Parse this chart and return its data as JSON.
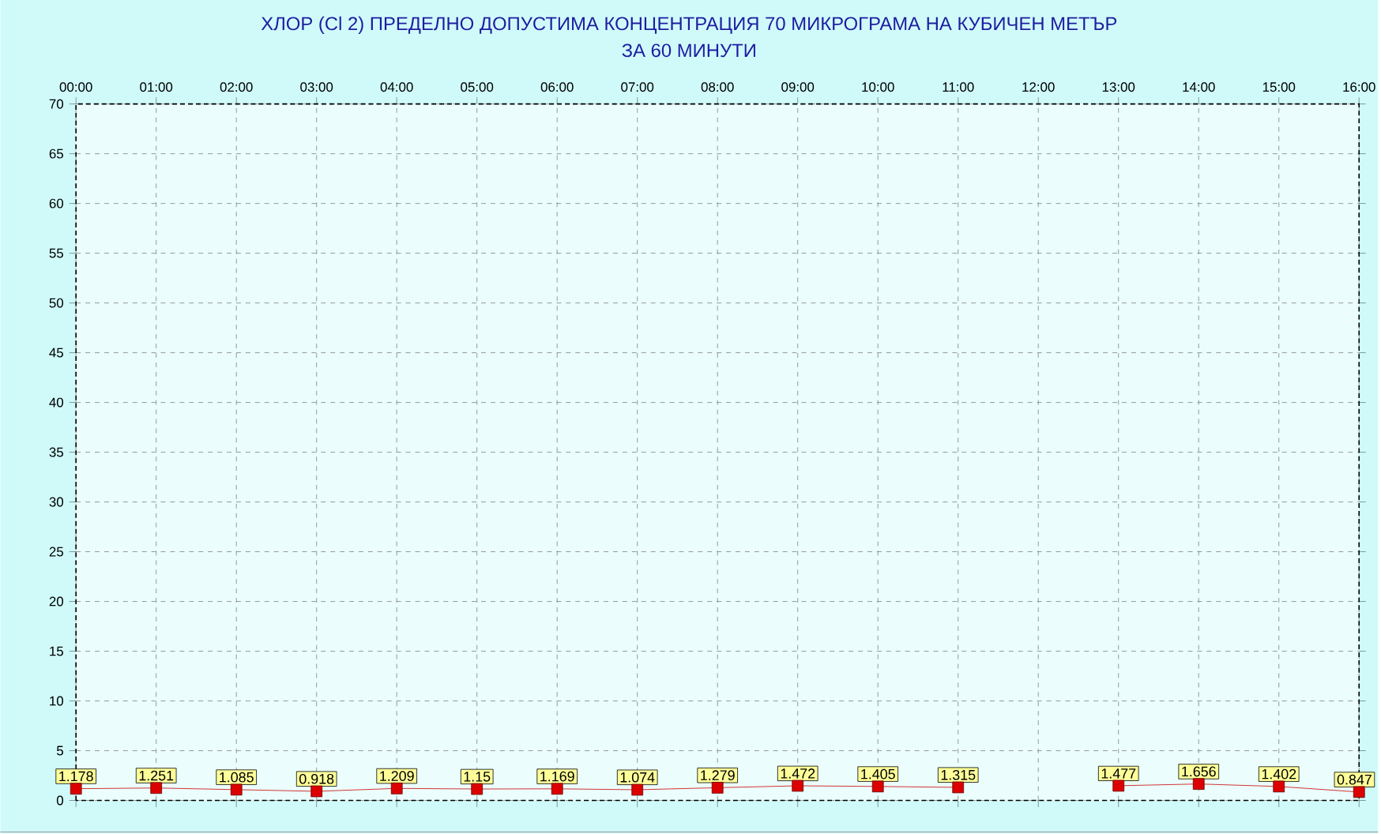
{
  "chart_data": {
    "type": "line",
    "title": "ХЛОР  (Cl 2)    ПРЕДЕЛНО ДОПУСТИМА КОНЦЕНТРАЦИЯ 70 МИКРОГРАМА  НА КУБИЧЕН МЕТЪР",
    "subtitle": "ЗА 60 МИНУТИ",
    "x": [
      0,
      1,
      2,
      3,
      4,
      5,
      6,
      7,
      8,
      9,
      10,
      11,
      12,
      13,
      14,
      15,
      16
    ],
    "series": [
      {
        "color": "#cc0000",
        "values": [
          1.178,
          1.251,
          1.085,
          0.918,
          1.209,
          1.15,
          1.169,
          1.074,
          1.279,
          1.472,
          1.405,
          1.315,
          null,
          1.477,
          1.656,
          1.402,
          0.847
        ]
      }
    ],
    "xlim": [
      0,
      16
    ],
    "xticks": [
      {
        "value": 0,
        "label": "00:00"
      },
      {
        "value": 1,
        "label": "01:00"
      },
      {
        "value": 2,
        "label": "02:00"
      },
      {
        "value": 3,
        "label": "03:00"
      },
      {
        "value": 4,
        "label": "04:00"
      },
      {
        "value": 5,
        "label": "05:00"
      },
      {
        "value": 6,
        "label": "06:00"
      },
      {
        "value": 7,
        "label": "07:00"
      },
      {
        "value": 8,
        "label": "08:00"
      },
      {
        "value": 9,
        "label": "09:00"
      },
      {
        "value": 10,
        "label": "10:00"
      },
      {
        "value": 11,
        "label": "11:00"
      },
      {
        "value": 12,
        "label": "12:00"
      },
      {
        "value": 13,
        "label": "13:00"
      },
      {
        "value": 14,
        "label": "14:00"
      },
      {
        "value": 15,
        "label": "15:00"
      },
      {
        "value": 16,
        "label": "16:00"
      }
    ],
    "ylim": [
      0,
      70
    ],
    "yticks": [
      0,
      5,
      10,
      15,
      20,
      25,
      30,
      35,
      40,
      45,
      50,
      55,
      60,
      65,
      70
    ],
    "grid": true,
    "marker": "square",
    "line_style": "solid",
    "data_labels": true
  }
}
